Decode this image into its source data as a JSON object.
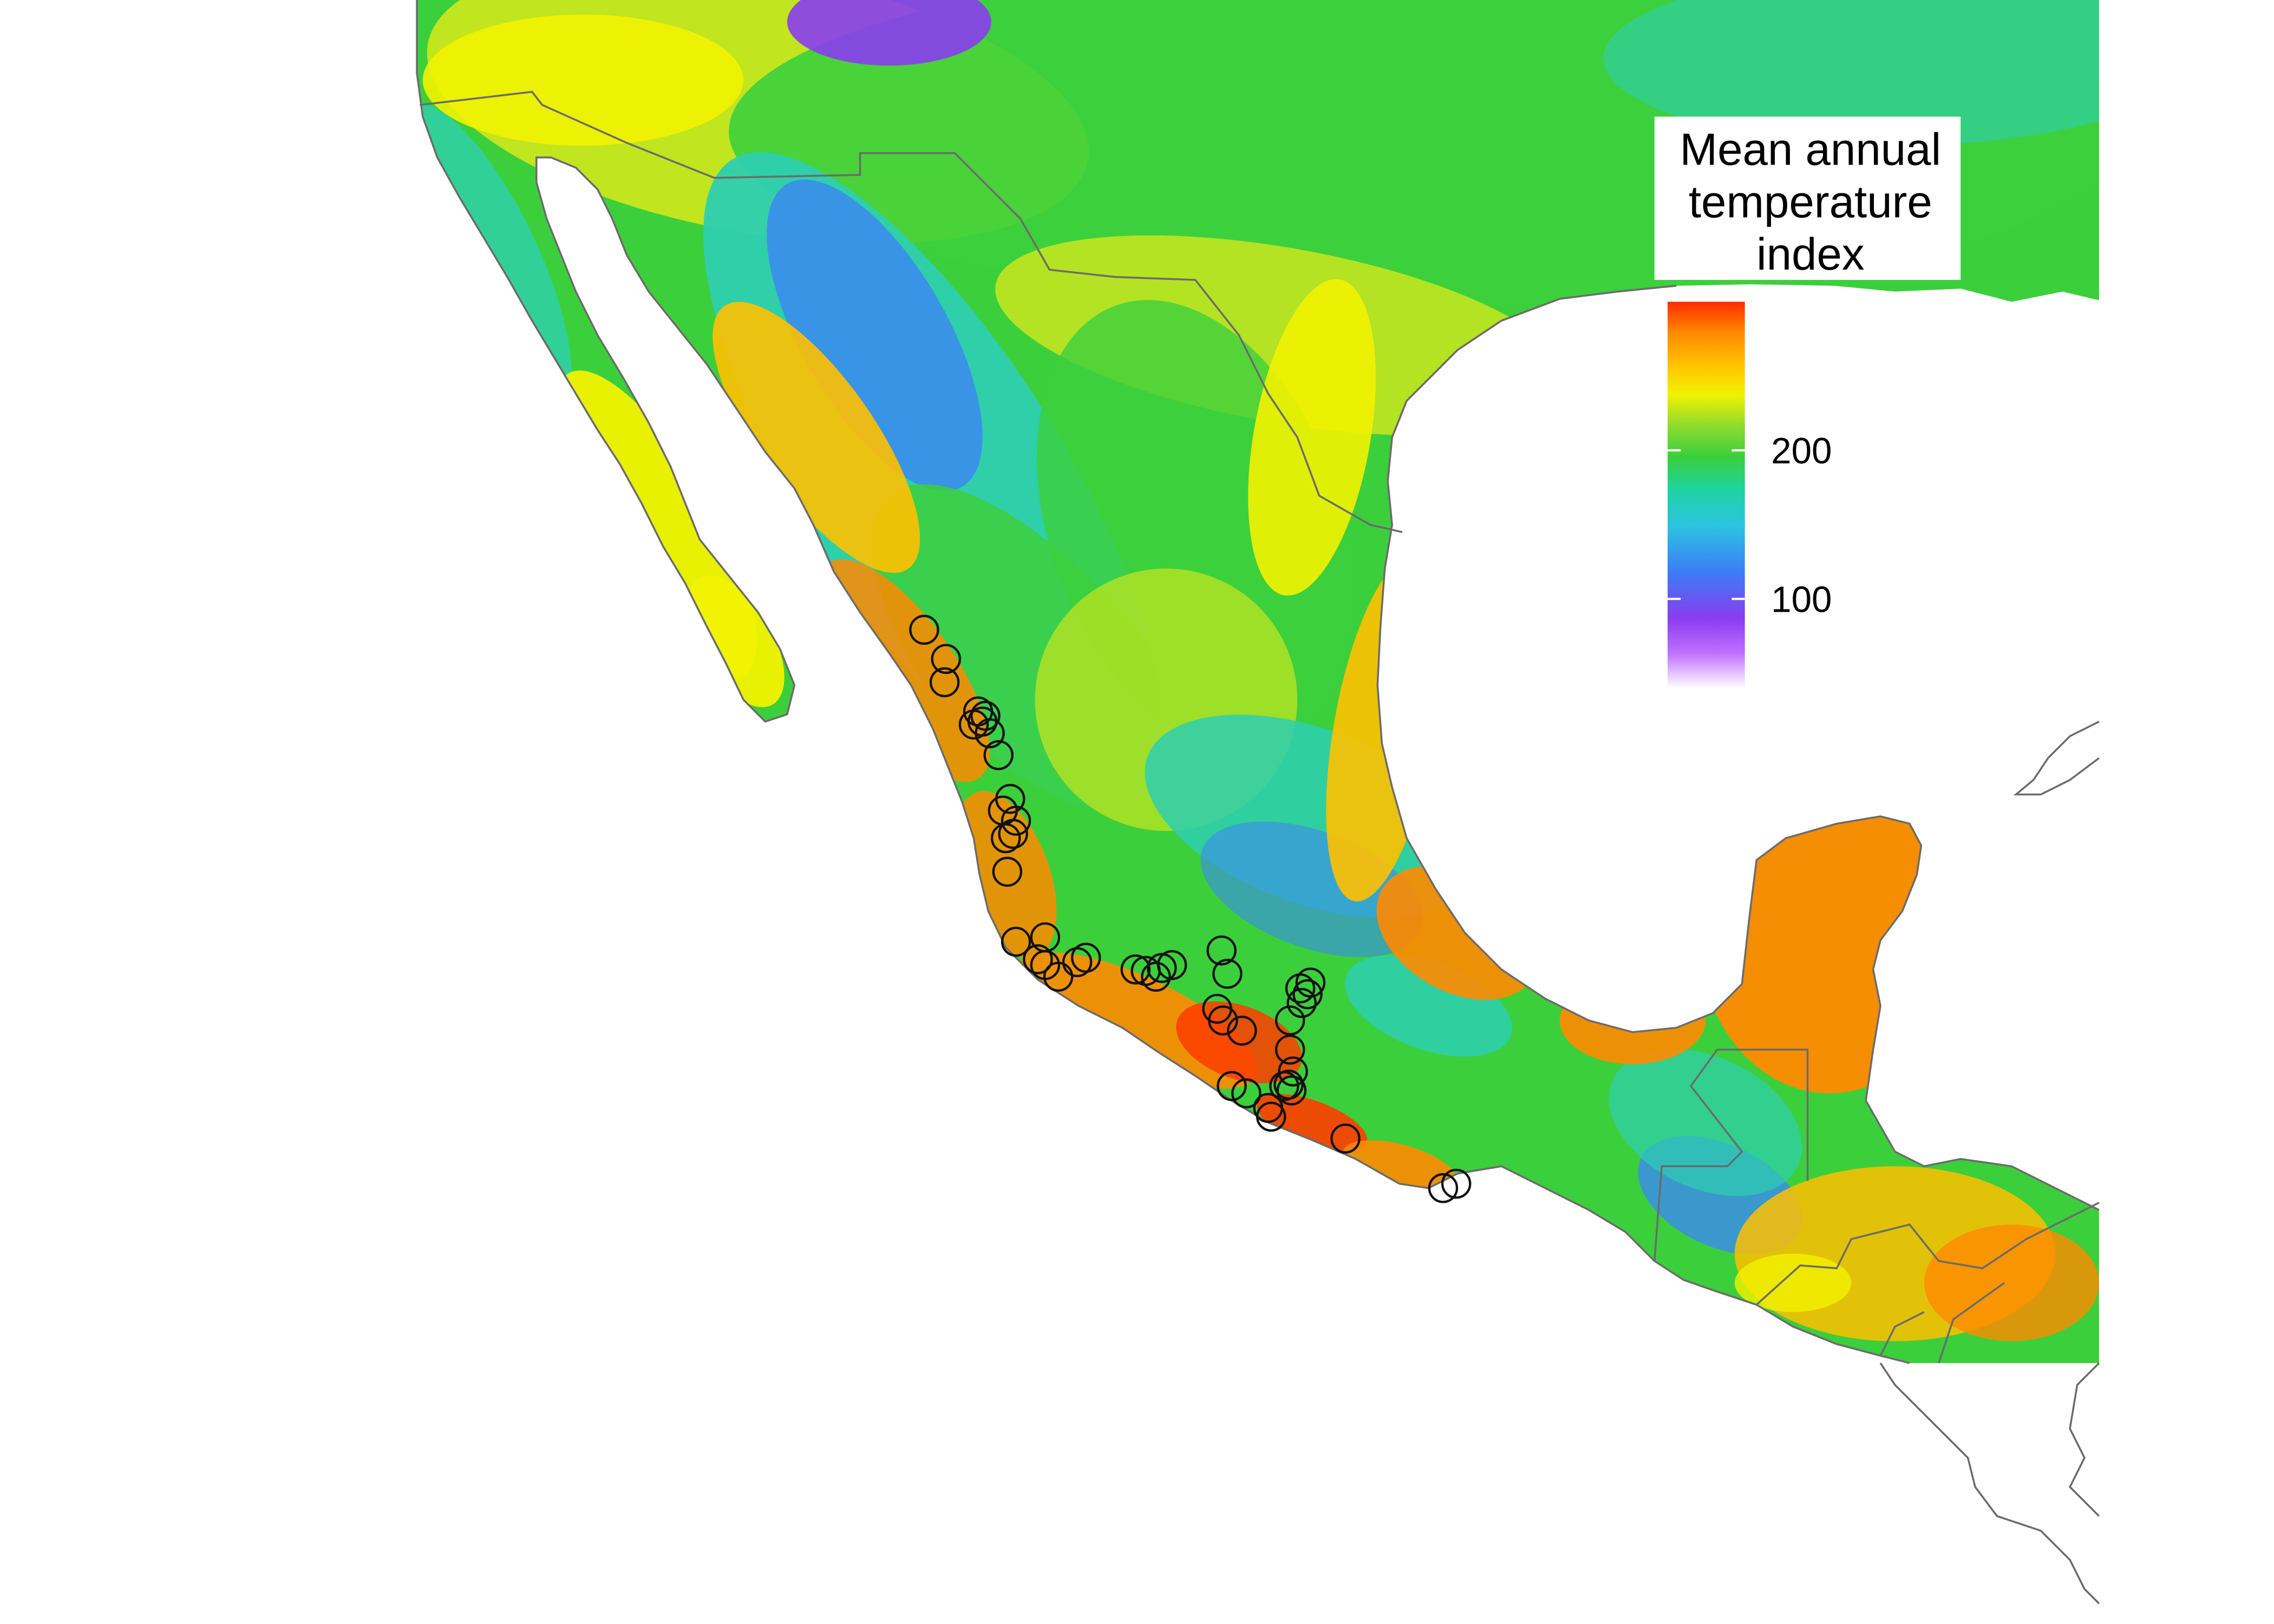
{
  "legend": {
    "title_lines": [
      "Mean annual",
      "temperature",
      "index"
    ],
    "ticks": [
      {
        "label": "200",
        "value": 200
      },
      {
        "label": "100",
        "value": 100
      }
    ],
    "scale_min": 40,
    "scale_max": 300,
    "colors": [
      "#ffffff",
      "#c070ff",
      "#8a3cf0",
      "#3b7df5",
      "#2cc4e0",
      "#1fd39a",
      "#3ccf3c",
      "#8fdc2e",
      "#f2f200",
      "#ffc000",
      "#ff8a00",
      "#ff2a00"
    ]
  },
  "raster_colors": {
    "ocean": "#ffffff",
    "cold": "#8a3cf0",
    "cool": "#3b8af0",
    "mild": "#2ecfb0",
    "temperate": "#3ccf3c",
    "warm": "#c8e61e",
    "hot": "#f2f200",
    "hotter": "#ffc000",
    "very_hot": "#ff8a00",
    "extreme": "#ff3c00"
  },
  "border_color": "#6b6b6b",
  "marker_color": "#111111"
}
